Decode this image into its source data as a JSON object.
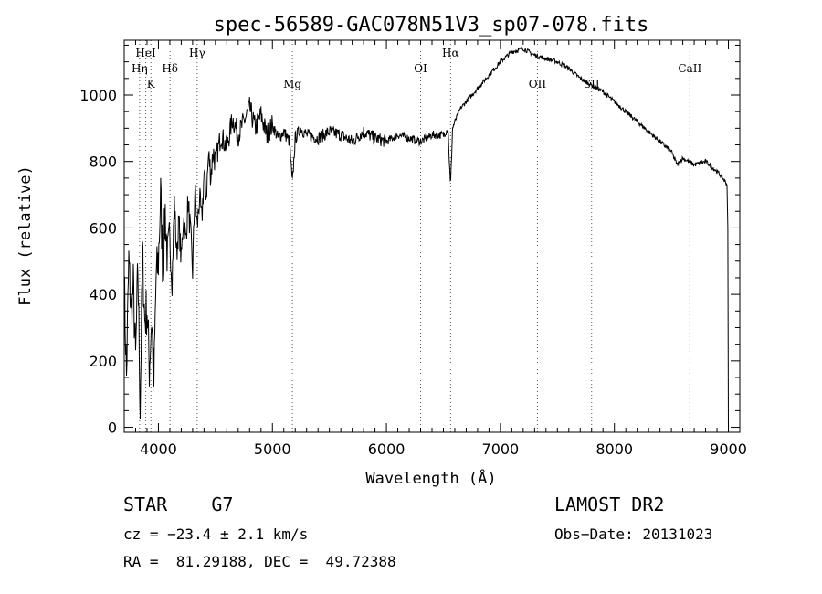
{
  "chart_data": {
    "type": "line",
    "title": "spec-56589-GAC078N51V3_sp07-078.fits",
    "xlabel": "Wavelength (Å)",
    "ylabel": "Flux (relative)",
    "xlim": [
      3700,
      9100
    ],
    "ylim": [
      -15,
      1165
    ],
    "x_ticks": [
      4000,
      5000,
      6000,
      7000,
      8000,
      9000
    ],
    "y_ticks": [
      0,
      200,
      400,
      600,
      800,
      1000
    ],
    "grid": false,
    "legend": "none",
    "line_color": "#000000",
    "spectrum": {
      "x": [
        3700,
        3720,
        3740,
        3760,
        3780,
        3800,
        3820,
        3840,
        3860,
        3880,
        3900,
        3920,
        3940,
        3960,
        3980,
        4000,
        4020,
        4040,
        4060,
        4080,
        4100,
        4120,
        4140,
        4160,
        4180,
        4200,
        4220,
        4240,
        4260,
        4280,
        4300,
        4320,
        4340,
        4360,
        4380,
        4400,
        4420,
        4440,
        4460,
        4480,
        4500,
        4550,
        4600,
        4650,
        4700,
        4750,
        4800,
        4850,
        4900,
        4950,
        5000,
        5050,
        5100,
        5150,
        5175,
        5200,
        5250,
        5300,
        5400,
        5500,
        5600,
        5700,
        5800,
        5900,
        6000,
        6100,
        6200,
        6300,
        6400,
        6500,
        6540,
        6562,
        6580,
        6600,
        6650,
        6700,
        6800,
        6900,
        7000,
        7100,
        7200,
        7300,
        7400,
        7500,
        7600,
        7700,
        7800,
        7900,
        8000,
        8100,
        8200,
        8300,
        8400,
        8500,
        8550,
        8600,
        8700,
        8800,
        8900,
        8950,
        8990,
        9000
      ],
      "y": [
        440,
        150,
        500,
        350,
        420,
        200,
        480,
        60,
        520,
        320,
        360,
        180,
        330,
        130,
        450,
        500,
        700,
        460,
        650,
        500,
        560,
        440,
        680,
        520,
        620,
        500,
        640,
        560,
        680,
        590,
        470,
        720,
        600,
        690,
        620,
        760,
        700,
        820,
        760,
        830,
        800,
        880,
        840,
        930,
        880,
        920,
        960,
        900,
        940,
        880,
        910,
        870,
        890,
        860,
        730,
        870,
        900,
        880,
        870,
        890,
        880,
        860,
        890,
        870,
        860,
        880,
        870,
        860,
        880,
        880,
        900,
        720,
        900,
        920,
        960,
        980,
        1020,
        1060,
        1100,
        1130,
        1140,
        1120,
        1110,
        1100,
        1080,
        1050,
        1030,
        1010,
        980,
        950,
        920,
        890,
        860,
        830,
        790,
        810,
        790,
        800,
        770,
        750,
        730,
        0
      ]
    },
    "lines": [
      {
        "label": "HeI",
        "wavelength": 3889
      },
      {
        "label": "Hη",
        "wavelength": 3835
      },
      {
        "label": "K",
        "wavelength": 3934
      },
      {
        "label": "Hδ",
        "wavelength": 4102
      },
      {
        "label": "Hγ",
        "wavelength": 4340
      },
      {
        "label": "Mg",
        "wavelength": 5175
      },
      {
        "label": "OI",
        "wavelength": 6300
      },
      {
        "label": "Hα",
        "wavelength": 6563
      },
      {
        "label": "OII",
        "wavelength": 7325
      },
      {
        "label": "SII",
        "wavelength": 7800
      },
      {
        "label": "CaII",
        "wavelength": 8662
      }
    ]
  },
  "info": {
    "object_class": "STAR    G7",
    "survey": "LAMOST DR2",
    "cz": "cz = −23.4 ± 2.1 km/s",
    "obs_date": "Obs−Date: 20131023",
    "radec": "RA =  81.29188, DEC =  49.72388"
  }
}
